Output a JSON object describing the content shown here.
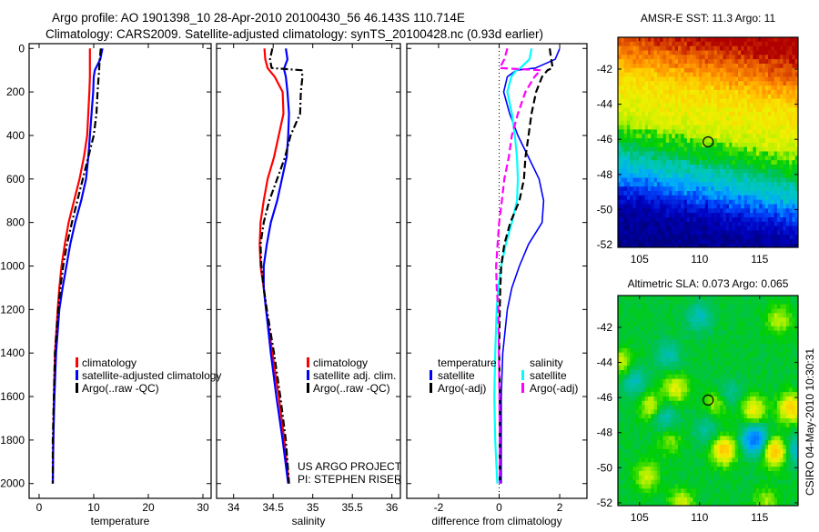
{
  "header": {
    "line1": "Argo profile: AO 1901398_10 28-Apr-2010 20100430_56 46.143S 110.714E",
    "line2": "Climatology: CARS2009. Satellite-adjusted climatology: synTS_20100428.nc (0.93d earlier)"
  },
  "credit": {
    "line1": "US ARGO PROJECT",
    "line2": "PI: STEPHEN RISER"
  },
  "timestamp": "CSIRO 04-May-2010 10:30:31",
  "chart_data": [
    {
      "type": "line",
      "id": "temperature",
      "xlabel": "temperature",
      "ylabel": "",
      "xlim": [
        -1.83,
        31.5
      ],
      "ylim": [
        2068,
        -22
      ],
      "xticks": [
        0,
        10,
        20,
        30
      ],
      "yticks": [
        0,
        200,
        400,
        600,
        800,
        1000,
        1200,
        1400,
        1600,
        1800,
        2000
      ],
      "show_ytick_labels": true,
      "depth": [
        0,
        50,
        90,
        100,
        130,
        200,
        300,
        400,
        500,
        600,
        700,
        800,
        900,
        1000,
        1100,
        1200,
        1400,
        1600,
        1800,
        2000
      ],
      "series": [
        {
          "name": "climatology",
          "color": "#ff0000",
          "style": "solid",
          "values": [
            9.3,
            9.3,
            9.3,
            9.3,
            9.3,
            9.2,
            9.0,
            8.8,
            8.2,
            7.4,
            6.4,
            5.4,
            4.7,
            4.1,
            3.7,
            3.4,
            2.9,
            2.7,
            2.6,
            2.5
          ]
        },
        {
          "name": "satellite-adjusted climatology",
          "color": "#0000ff",
          "style": "solid",
          "values": [
            11.6,
            11.2,
            10.4,
            10.2,
            10.0,
            9.9,
            9.6,
            9.3,
            9.0,
            8.6,
            7.7,
            6.6,
            5.7,
            5.0,
            4.3,
            3.7,
            3.1,
            2.8,
            2.6,
            2.5
          ]
        },
        {
          "name": "Argo(..raw -QC)",
          "color": "#000000",
          "style": "dashdot",
          "values": [
            11.3,
            11.1,
            11.0,
            11.0,
            10.9,
            10.7,
            10.5,
            10.0,
            9.0,
            8.0,
            7.0,
            6.0,
            5.1,
            4.4,
            3.9,
            3.5,
            2.9,
            2.7,
            2.5,
            2.5
          ]
        }
      ],
      "legend": {
        "entries": [
          "climatology",
          "satellite-adjusted climatology",
          "Argo(..raw -QC)"
        ]
      }
    },
    {
      "type": "line",
      "id": "salinity",
      "xlabel": "salinity",
      "ylabel": "",
      "xlim": [
        33.785,
        36.107
      ],
      "ylim": [
        2068,
        -22
      ],
      "xticks": [
        34,
        34.5,
        35,
        35.5,
        36
      ],
      "yticks": [
        0,
        200,
        400,
        600,
        800,
        1000,
        1200,
        1400,
        1600,
        1800,
        2000
      ],
      "show_ytick_labels": false,
      "depth": [
        0,
        50,
        90,
        100,
        130,
        200,
        300,
        400,
        500,
        600,
        700,
        800,
        900,
        1000,
        1100,
        1200,
        1400,
        1600,
        1800,
        2000
      ],
      "series": [
        {
          "name": "climatology",
          "color": "#ff0000",
          "style": "solid",
          "values": [
            34.39,
            34.4,
            34.43,
            34.45,
            34.52,
            34.62,
            34.63,
            34.57,
            34.51,
            34.43,
            34.38,
            34.34,
            34.33,
            34.34,
            34.38,
            34.41,
            34.49,
            34.57,
            34.64,
            34.7
          ]
        },
        {
          "name": "satellite adj. clim.",
          "color": "#0000ff",
          "style": "solid",
          "values": [
            34.66,
            34.68,
            34.64,
            34.64,
            34.66,
            34.68,
            34.7,
            34.69,
            34.67,
            34.61,
            34.55,
            34.47,
            34.42,
            34.38,
            34.38,
            34.41,
            34.47,
            34.54,
            34.62,
            34.69
          ]
        },
        {
          "name": "Argo(..raw -QC)",
          "color": "#000000",
          "style": "dashdot",
          "values": [
            34.49,
            34.46,
            34.48,
            34.86,
            34.87,
            34.85,
            34.84,
            34.72,
            34.65,
            34.55,
            34.45,
            34.38,
            34.34,
            34.35,
            34.38,
            34.42,
            34.51,
            34.59,
            34.66,
            34.7
          ]
        }
      ],
      "legend": {
        "entries": [
          "climatology",
          "satellite adj. clim.",
          "Argo(..raw -QC)"
        ]
      }
    },
    {
      "type": "line",
      "id": "difference",
      "xlabel": "difference from climatology",
      "ylabel": "",
      "xlim": [
        -3.05,
        2.9
      ],
      "ylim": [
        2068,
        -22
      ],
      "xticks": [
        -2,
        0,
        2
      ],
      "yticks": [
        0,
        200,
        400,
        600,
        800,
        1000,
        1200,
        1400,
        1600,
        1800,
        2000
      ],
      "show_ytick_labels": false,
      "zero_line": true,
      "depth": [
        0,
        50,
        90,
        100,
        130,
        200,
        300,
        400,
        500,
        600,
        700,
        800,
        900,
        1000,
        1100,
        1200,
        1400,
        1600,
        1800,
        2000
      ],
      "series": [
        {
          "name": "temperature satellite",
          "color": "#0000ff",
          "style": "thin",
          "values": [
            2.0,
            1.85,
            1.2,
            0.57,
            0.27,
            0.15,
            0.35,
            0.62,
            0.97,
            1.32,
            1.47,
            1.42,
            0.97,
            0.67,
            0.42,
            0.27,
            0.12,
            0.07,
            0.07,
            0.07
          ]
        },
        {
          "name": "salinity satellite",
          "color": "#00ffff",
          "style": "solid",
          "values": [
            1.07,
            1.0,
            0.7,
            0.57,
            0.4,
            0.27,
            0.42,
            0.52,
            0.59,
            0.62,
            0.59,
            0.42,
            0.22,
            0.07,
            -0.03,
            -0.08,
            -0.13,
            -0.16,
            -0.13,
            -0.06
          ]
        },
        {
          "name": "temperature Argo(-adj)",
          "color": "#000000",
          "style": "dashed",
          "values": [
            1.67,
            1.72,
            1.77,
            1.6,
            1.42,
            1.22,
            1.07,
            0.97,
            0.87,
            0.82,
            0.67,
            0.37,
            0.17,
            0.07,
            0.04,
            0.02,
            0.0,
            0.02,
            0.02,
            0.02
          ]
        },
        {
          "name": "salinity Argo(-adj)",
          "color": "#ff00ff",
          "style": "dashed",
          "values": [
            0.27,
            0.17,
            0.02,
            1.37,
            1.17,
            0.87,
            0.62,
            0.42,
            0.32,
            0.17,
            0.09,
            0.0,
            -0.05,
            -0.1,
            -0.08,
            -0.03,
            -0.01,
            0.01,
            0.02,
            0.02
          ]
        }
      ],
      "legend": {
        "temperature_heading": "temperature",
        "salinity_heading": "salinity",
        "temp_entries": [
          {
            "label": "satellite",
            "color": "#0000ff"
          },
          {
            "label": "Argo(-adj)",
            "color": "#000000"
          }
        ],
        "sal_entries": [
          {
            "label": "satellite",
            "color": "#00ffff"
          },
          {
            "label": "Argo(-adj)",
            "color": "#ff00ff"
          }
        ]
      }
    },
    {
      "type": "heatmap",
      "id": "sst-map",
      "title": "AMSR-E SST: 11.3 Argo: 11",
      "xlim": [
        103.2,
        118.2
      ],
      "ylim": [
        -52.15,
        -40.19
      ],
      "xticks": [
        105,
        110,
        115
      ],
      "xtick_labels": [
        "105",
        "110",
        "115"
      ],
      "yticks": [
        -42,
        -44,
        -46,
        -48,
        -50,
        -52
      ],
      "ytick_labels": [
        "-42",
        "-44",
        "-46",
        "-48",
        "-50",
        "-52"
      ],
      "argo_position": {
        "lon": 110.714,
        "lat": -46.143
      },
      "cell_deg": 0.25,
      "lat_profile": [
        [
          -40.2,
          16.6
        ],
        [
          -41,
          15.6
        ],
        [
          -42,
          14.6
        ],
        [
          -43,
          13.2
        ],
        [
          -44,
          12.7
        ],
        [
          -45,
          12.3
        ],
        [
          -45.8,
          11.9
        ],
        [
          -46.3,
          10.7
        ],
        [
          -47,
          10.1
        ],
        [
          -47.6,
          8.9
        ],
        [
          -48.5,
          8.0
        ],
        [
          -49.3,
          6.8
        ],
        [
          -50,
          5.4
        ],
        [
          -51,
          4.5
        ],
        [
          -52.2,
          4.2
        ]
      ],
      "colormap": [
        [
          4,
          "#00007f"
        ],
        [
          5,
          "#0000c0"
        ],
        [
          6.5,
          "#0048ff"
        ],
        [
          7.5,
          "#00a8ff"
        ],
        [
          8.5,
          "#00c8c0"
        ],
        [
          9.5,
          "#00c060"
        ],
        [
          10.5,
          "#00d000"
        ],
        [
          11.5,
          "#a8f000"
        ],
        [
          12.5,
          "#f0f000"
        ],
        [
          13.5,
          "#ffc800"
        ],
        [
          14.5,
          "#ff8c00"
        ],
        [
          15.5,
          "#e05000"
        ],
        [
          16.5,
          "#b00000"
        ]
      ]
    },
    {
      "type": "heatmap",
      "id": "sla-map",
      "title": "Altimetric SLA: 0.073 Argo: 0.065",
      "xlim": [
        103.2,
        118.2
      ],
      "ylim": [
        -52.16,
        -40.19
      ],
      "xticks": [
        105,
        110,
        115
      ],
      "xtick_labels": [
        "105",
        "110",
        "115"
      ],
      "yticks": [
        -42,
        -44,
        -46,
        -48,
        -50,
        -52
      ],
      "ytick_labels": [
        "-42",
        "-44",
        "-46",
        "-48",
        "-50",
        "-52"
      ],
      "argo_position": {
        "lon": 110.714,
        "lat": -46.143
      },
      "cell_deg": 0.25,
      "base_value": 0.0,
      "features": [
        [
          108,
          -45.5,
          0.15
        ],
        [
          106,
          -46.5,
          0.13
        ],
        [
          114.5,
          -46.7,
          0.17
        ],
        [
          112,
          -49,
          0.24
        ],
        [
          117.6,
          -46.6,
          0.22
        ],
        [
          116.3,
          -49.1,
          0.26
        ],
        [
          105.6,
          -50.5,
          0.13
        ],
        [
          108.5,
          -52,
          0.13
        ],
        [
          103.5,
          -44,
          0.12
        ],
        [
          116.6,
          -41.6,
          0.12
        ],
        [
          111.4,
          -46.4,
          0.1
        ],
        [
          115.5,
          -52,
          0.1
        ],
        [
          107.5,
          -48.5,
          0.08
        ],
        [
          110,
          -41.4,
          -0.12
        ],
        [
          107.4,
          -43.6,
          -0.1
        ],
        [
          104.6,
          -45.1,
          -0.12
        ],
        [
          107.1,
          -47.1,
          -0.12
        ],
        [
          114.6,
          -48.4,
          -0.3
        ],
        [
          118,
          -49,
          -0.15
        ],
        [
          110.6,
          -47.8,
          -0.09
        ],
        [
          112.5,
          -45.8,
          -0.08
        ]
      ],
      "colormap": [
        [
          -0.3,
          "#0070ff"
        ],
        [
          -0.2,
          "#00a8ff"
        ],
        [
          -0.1,
          "#00c0a8"
        ],
        [
          -0.03,
          "#00c060"
        ],
        [
          0.03,
          "#00d000"
        ],
        [
          0.1,
          "#a8f000"
        ],
        [
          0.16,
          "#f0f000"
        ],
        [
          0.24,
          "#ffc800"
        ],
        [
          0.3,
          "#ffa000"
        ]
      ]
    }
  ]
}
